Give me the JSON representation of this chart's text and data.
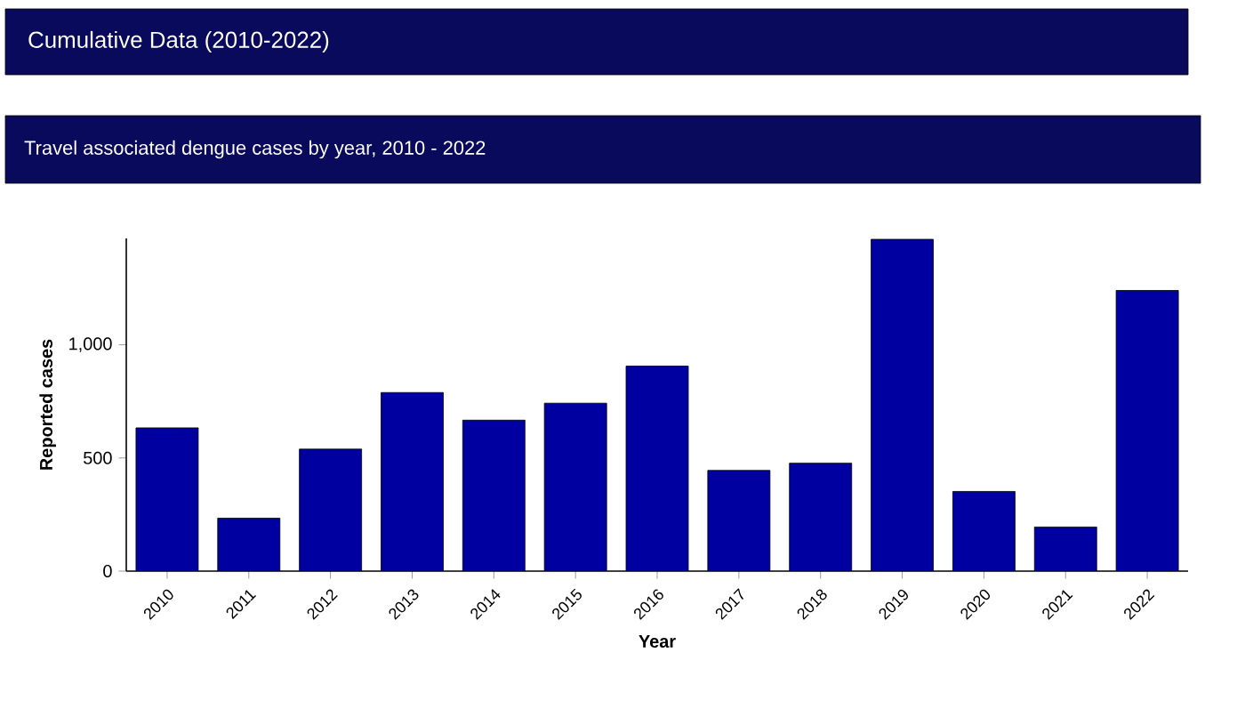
{
  "chart_data": {
    "type": "bar",
    "title": "Cumulative Data (2010-2022)",
    "subtitle": "Travel associated dengue cases by year, 2010 - 2022",
    "xlabel": "Year",
    "ylabel": "Reported cases",
    "categories": [
      "2010",
      "2011",
      "2012",
      "2013",
      "2014",
      "2015",
      "2016",
      "2017",
      "2018",
      "2019",
      "2020",
      "2021",
      "2022"
    ],
    "values": [
      633,
      234,
      539,
      789,
      667,
      742,
      906,
      445,
      477,
      1466,
      352,
      195,
      1240
    ],
    "color": "#0000a0",
    "ylim": [
      0,
      1470
    ],
    "yticks": [
      0,
      500,
      {
        "value": 1000,
        "label": "1,000"
      }
    ]
  }
}
